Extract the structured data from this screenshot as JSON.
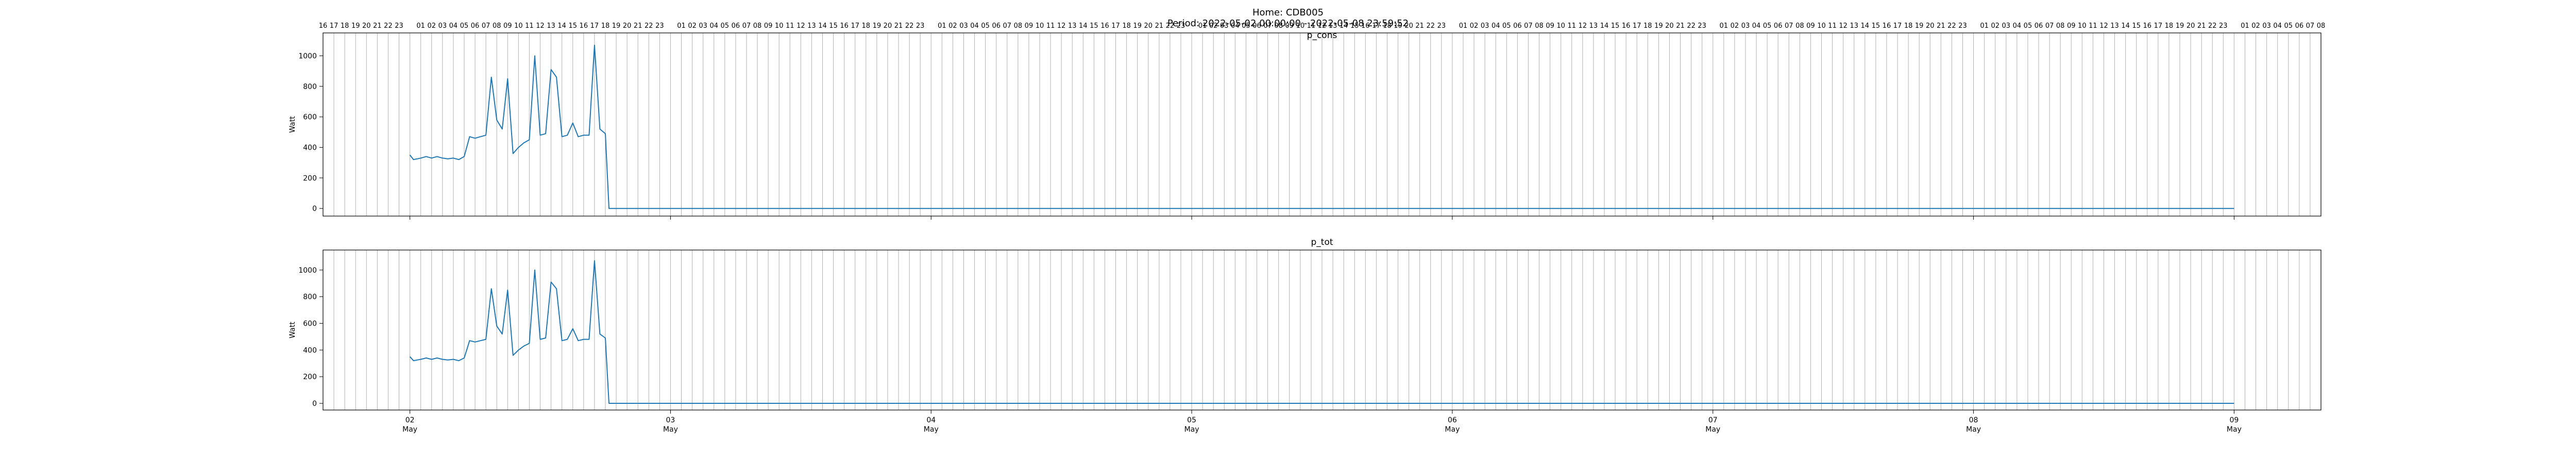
{
  "figure": {
    "title_line1": "Home: CDB005",
    "title_line2": "Period: 2022-05-02 00:00:00 - 2022-05-08 23:59:52"
  },
  "colors": {
    "series": "#1f77b4",
    "grid": "#b0b0b0",
    "axis": "#000000"
  },
  "chart_data": [
    {
      "type": "line",
      "title": "p_cons",
      "ylabel": "Watt",
      "xlabel": "",
      "xlim": [
        "2022-05-01T16:00",
        "2022-05-09T08:00"
      ],
      "ylim": [
        -50,
        1150
      ],
      "yticks": [
        0,
        200,
        400,
        600,
        800,
        1000
      ],
      "grid": "vertical hourly lines",
      "top_hour_labels": true,
      "series": [
        {
          "values_x_format": "YYYY-MM-DDTHH:MM",
          "x": [
            "2022-05-02T00:00",
            "2022-05-02T00:20",
            "2022-05-02T00:40",
            "2022-05-02T01:00",
            "2022-05-02T01:30",
            "2022-05-02T02:00",
            "2022-05-02T02:30",
            "2022-05-02T03:00",
            "2022-05-02T03:30",
            "2022-05-02T04:00",
            "2022-05-02T04:30",
            "2022-05-02T05:00",
            "2022-05-02T05:30",
            "2022-05-02T06:00",
            "2022-05-02T06:30",
            "2022-05-02T07:00",
            "2022-05-02T07:30",
            "2022-05-02T08:00",
            "2022-05-02T08:30",
            "2022-05-02T09:00",
            "2022-05-02T09:30",
            "2022-05-02T10:00",
            "2022-05-02T10:30",
            "2022-05-02T11:00",
            "2022-05-02T11:30",
            "2022-05-02T12:00",
            "2022-05-02T12:30",
            "2022-05-02T13:00",
            "2022-05-02T13:30",
            "2022-05-02T14:00",
            "2022-05-02T14:30",
            "2022-05-02T15:00",
            "2022-05-02T15:30",
            "2022-05-02T16:00",
            "2022-05-02T16:30",
            "2022-05-02T17:00",
            "2022-05-02T17:30",
            "2022-05-02T18:00",
            "2022-05-02T18:20",
            "2022-05-02T18:40",
            "2022-05-09T00:00"
          ],
          "y": [
            350,
            320,
            325,
            330,
            340,
            330,
            340,
            330,
            325,
            330,
            320,
            340,
            470,
            460,
            470,
            480,
            860,
            580,
            520,
            850,
            360,
            400,
            430,
            450,
            1000,
            480,
            490,
            910,
            860,
            470,
            480,
            560,
            470,
            480,
            480,
            1070,
            520,
            490,
            0,
            0,
            0
          ]
        }
      ]
    },
    {
      "type": "line",
      "title": "p_tot",
      "ylabel": "Watt",
      "xlabel": "",
      "xlim": [
        "2022-05-01T16:00",
        "2022-05-09T08:00"
      ],
      "ylim": [
        -50,
        1150
      ],
      "yticks": [
        0,
        200,
        400,
        600,
        800,
        1000
      ],
      "xticks": [
        {
          "day": "02",
          "month": "May",
          "x": "2022-05-02T00:00"
        },
        {
          "day": "03",
          "month": "May",
          "x": "2022-05-03T00:00"
        },
        {
          "day": "04",
          "month": "May",
          "x": "2022-05-04T00:00"
        },
        {
          "day": "05",
          "month": "May",
          "x": "2022-05-05T00:00"
        },
        {
          "day": "06",
          "month": "May",
          "x": "2022-05-06T00:00"
        },
        {
          "day": "07",
          "month": "May",
          "x": "2022-05-07T00:00"
        },
        {
          "day": "08",
          "month": "May",
          "x": "2022-05-08T00:00"
        },
        {
          "day": "09",
          "month": "May",
          "x": "2022-05-09T00:00"
        }
      ],
      "grid": "vertical hourly lines",
      "top_hour_labels": false,
      "series": [
        {
          "x": [
            "2022-05-02T00:00",
            "2022-05-02T00:20",
            "2022-05-02T00:40",
            "2022-05-02T01:00",
            "2022-05-02T01:30",
            "2022-05-02T02:00",
            "2022-05-02T02:30",
            "2022-05-02T03:00",
            "2022-05-02T03:30",
            "2022-05-02T04:00",
            "2022-05-02T04:30",
            "2022-05-02T05:00",
            "2022-05-02T05:30",
            "2022-05-02T06:00",
            "2022-05-02T06:30",
            "2022-05-02T07:00",
            "2022-05-02T07:30",
            "2022-05-02T08:00",
            "2022-05-02T08:30",
            "2022-05-02T09:00",
            "2022-05-02T09:30",
            "2022-05-02T10:00",
            "2022-05-02T10:30",
            "2022-05-02T11:00",
            "2022-05-02T11:30",
            "2022-05-02T12:00",
            "2022-05-02T12:30",
            "2022-05-02T13:00",
            "2022-05-02T13:30",
            "2022-05-02T14:00",
            "2022-05-02T14:30",
            "2022-05-02T15:00",
            "2022-05-02T15:30",
            "2022-05-02T16:00",
            "2022-05-02T16:30",
            "2022-05-02T17:00",
            "2022-05-02T17:30",
            "2022-05-02T18:00",
            "2022-05-02T18:20",
            "2022-05-02T18:40",
            "2022-05-09T00:00"
          ],
          "y": [
            350,
            320,
            325,
            330,
            340,
            330,
            340,
            330,
            325,
            330,
            320,
            340,
            470,
            460,
            470,
            480,
            860,
            580,
            520,
            850,
            360,
            400,
            430,
            450,
            1000,
            480,
            490,
            910,
            860,
            470,
            480,
            560,
            470,
            480,
            480,
            1070,
            520,
            490,
            0,
            0,
            0
          ]
        }
      ]
    }
  ]
}
